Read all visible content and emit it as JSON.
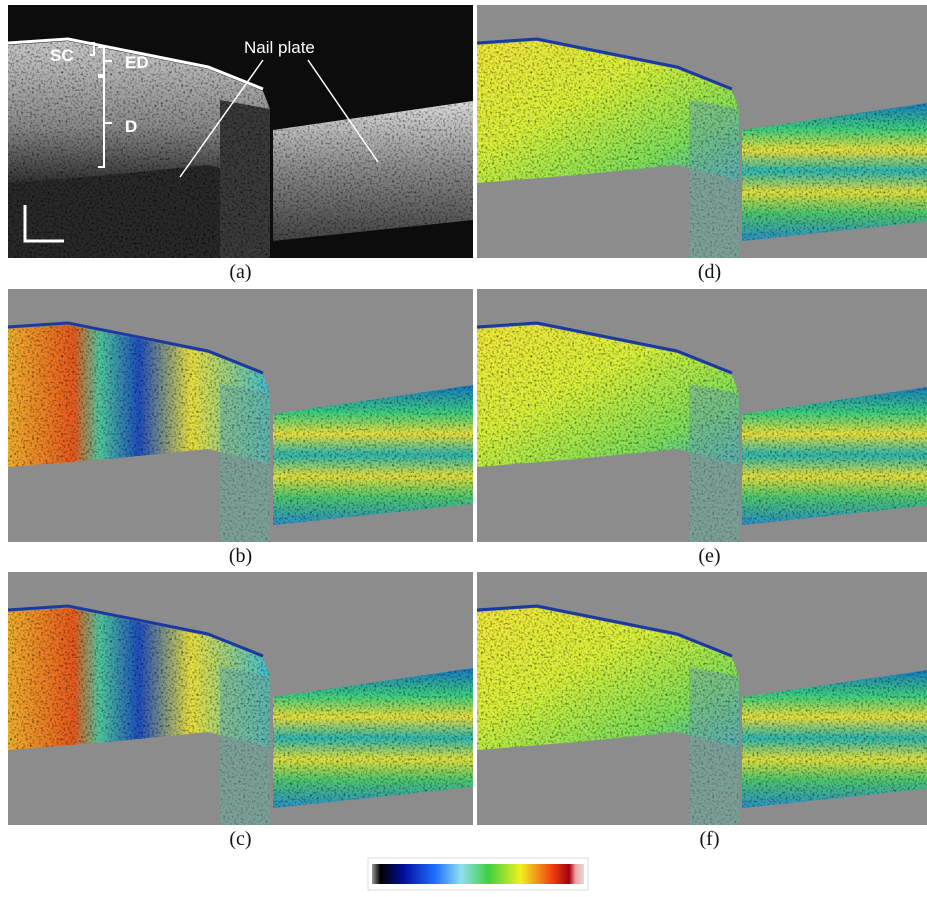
{
  "panels": [
    {
      "label": "(a)"
    },
    {
      "label": "(b)"
    },
    {
      "label": "(c)"
    },
    {
      "label": "(d)"
    },
    {
      "label": "(e)"
    },
    {
      "label": "(f)"
    }
  ],
  "annotations": {
    "sc": "SC",
    "ed": "ED",
    "d": "D",
    "nail_plate": "Nail plate"
  }
}
